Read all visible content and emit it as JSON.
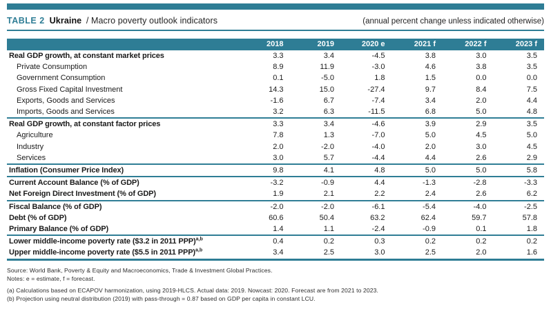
{
  "header": {
    "table_tag": "TABLE 2",
    "country": "Ukraine",
    "subtitle": "/ Macro poverty outlook indicators",
    "caption_right": "(annual percent change unless indicated otherwise)"
  },
  "colors": {
    "accent_teal": "#2e7d95",
    "header_text": "#ffffff",
    "body_text": "#1a1a1a"
  },
  "table": {
    "columns": [
      "2018",
      "2019",
      "2020 e",
      "2021 f",
      "2022 f",
      "2023 f"
    ],
    "rows": [
      {
        "label": "Real GDP growth, at constant market prices",
        "bold": true,
        "values": [
          "3.3",
          "3.4",
          "-4.5",
          "3.8",
          "3.0",
          "3.5"
        ]
      },
      {
        "label": "Private Consumption",
        "indent": true,
        "values": [
          "8.9",
          "11.9",
          "-3.0",
          "4.6",
          "3.8",
          "3.5"
        ]
      },
      {
        "label": "Government Consumption",
        "indent": true,
        "values": [
          "0.1",
          "-5.0",
          "1.8",
          "1.5",
          "0.0",
          "0.0"
        ]
      },
      {
        "label": "Gross Fixed Capital Investment",
        "indent": true,
        "values": [
          "14.3",
          "15.0",
          "-27.4",
          "9.7",
          "8.4",
          "7.5"
        ]
      },
      {
        "label": "Exports, Goods and Services",
        "indent": true,
        "values": [
          "-1.6",
          "6.7",
          "-7.4",
          "3.4",
          "2.0",
          "4.4"
        ]
      },
      {
        "label": "Imports, Goods and Services",
        "indent": true,
        "values": [
          "3.2",
          "6.3",
          "-11.5",
          "6.8",
          "5.0",
          "4.8"
        ]
      },
      {
        "label": "Real GDP growth, at constant factor prices",
        "bold": true,
        "group_start": true,
        "values": [
          "3.3",
          "3.4",
          "-4.6",
          "3.9",
          "2.9",
          "3.5"
        ]
      },
      {
        "label": "Agriculture",
        "indent": true,
        "values": [
          "7.8",
          "1.3",
          "-7.0",
          "5.0",
          "4.5",
          "5.0"
        ]
      },
      {
        "label": "Industry",
        "indent": true,
        "values": [
          "2.0",
          "-2.0",
          "-4.0",
          "2.0",
          "3.0",
          "4.5"
        ]
      },
      {
        "label": "Services",
        "indent": true,
        "values": [
          "3.0",
          "5.7",
          "-4.4",
          "4.4",
          "2.6",
          "2.9"
        ]
      },
      {
        "label": "Inflation (Consumer Price Index)",
        "bold": true,
        "group_start": true,
        "values": [
          "9.8",
          "4.1",
          "4.8",
          "5.0",
          "5.0",
          "5.8"
        ]
      },
      {
        "label": "Current Account Balance (% of GDP)",
        "bold": true,
        "group_start": true,
        "values": [
          "-3.2",
          "-0.9",
          "4.4",
          "-1.3",
          "-2.8",
          "-3.3"
        ]
      },
      {
        "label": "Net Foreign Direct Investment (% of GDP)",
        "bold": true,
        "values": [
          "1.9",
          "2.1",
          "2.2",
          "2.4",
          "2.6",
          "6.2"
        ]
      },
      {
        "label": "Fiscal Balance (% of GDP)",
        "bold": true,
        "group_start": true,
        "values": [
          "-2.0",
          "-2.0",
          "-6.1",
          "-5.4",
          "-4.0",
          "-2.5"
        ]
      },
      {
        "label": "Debt (% of GDP)",
        "bold": true,
        "values": [
          "60.6",
          "50.4",
          "63.2",
          "62.4",
          "59.7",
          "57.8"
        ]
      },
      {
        "label": "Primary Balance (% of GDP)",
        "bold": true,
        "values": [
          "1.4",
          "1.1",
          "-2.4",
          "-0.9",
          "0.1",
          "1.8"
        ]
      },
      {
        "label": "Lower middle-income poverty rate ($3.2 in 2011 PPP)",
        "sup": "a,b",
        "bold": true,
        "group_start": true,
        "values": [
          "0.4",
          "0.2",
          "0.3",
          "0.2",
          "0.2",
          "0.2"
        ]
      },
      {
        "label": "Upper middle-income poverty rate ($5.5 in 2011 PPP)",
        "sup": "a,b",
        "bold": true,
        "values": [
          "3.4",
          "2.5",
          "3.0",
          "2.5",
          "2.0",
          "1.6"
        ]
      }
    ]
  },
  "footer": {
    "source": "Source: World Bank, Poverty & Equity and Macroeconomics, Trade & Investment Global Practices.",
    "notes": "Notes: e = estimate, f = forecast.",
    "note_a": "(a) Calculations based on ECAPOV harmonization, using 2019-HLCS. Actual data: 2019. Nowcast: 2020. Forecast are from 2021 to 2023.",
    "note_b": "(b) Projection using neutral distribution (2019) with pass-through = 0.87  based on GDP per capita in constant LCU."
  }
}
